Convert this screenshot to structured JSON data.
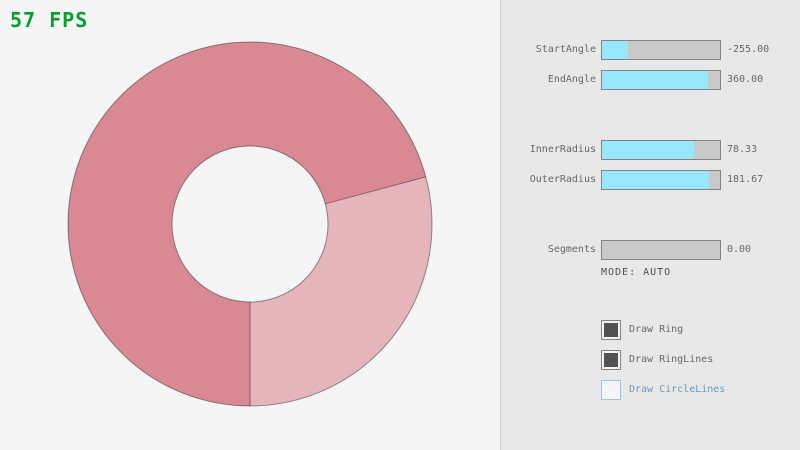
{
  "fps": "57 FPS",
  "colors": {
    "fps_green": "#009e2f",
    "slider_fill": "#97e8ff",
    "ring_overlap": "#d98994",
    "ring_single": "#e5b5bc",
    "ring_outline": "rgba(0,0,0,0.4)",
    "focus_blue": "#6c9bbc"
  },
  "panel": {
    "sliders": [
      {
        "label": "StartAngle",
        "value": "-255.00",
        "fill_percent": 22
      },
      {
        "label": "EndAngle",
        "value": "360.00",
        "fill_percent": 90
      },
      {
        "label": "InnerRadius",
        "value": "78.33",
        "fill_percent": 78
      },
      {
        "label": "OuterRadius",
        "value": "181.67",
        "fill_percent": 91
      },
      {
        "label": "Segments",
        "value": "0.00",
        "fill_percent": 0
      }
    ],
    "mode_text": "MODE: AUTO",
    "checkboxes": [
      {
        "label": "Draw Ring",
        "checked": true,
        "focused": false
      },
      {
        "label": "Draw RingLines",
        "checked": true,
        "focused": false
      },
      {
        "label": "Draw CircleLines",
        "checked": false,
        "focused": true
      }
    ]
  }
}
